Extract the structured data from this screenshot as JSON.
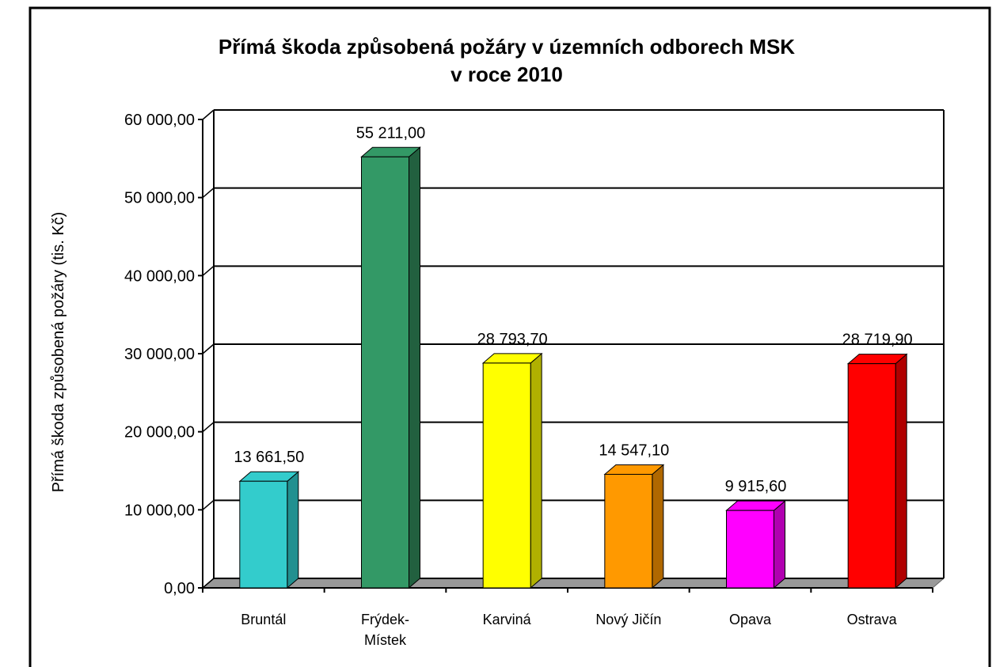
{
  "chart_data": {
    "type": "bar3d",
    "title": "Přímá škoda způsobená požáry v územních odborech MSK",
    "subtitle": "v roce 2010",
    "y_label": "Přímá škoda způsobená požáry (tis. Kč)",
    "categories": [
      "Bruntál",
      "Frýdek-Místek",
      "Karviná",
      "Nový Jičín",
      "Opava",
      "Ostrava"
    ],
    "values": [
      13661.5,
      55211,
      28793.7,
      14547.1,
      9915.6,
      28719.9
    ],
    "value_labels": [
      "13 661,50",
      "55 211,00",
      "28 793,70",
      "14 547,10",
      "9 915,60",
      "28 719,90"
    ],
    "colors": [
      "#33cccc",
      "#339966",
      "#ffff00",
      "#ff9900",
      "#ff00ff",
      "#ff0000"
    ],
    "side_colors": [
      "#229090",
      "#22603f",
      "#b0b000",
      "#b06800",
      "#b000b0",
      "#b00000"
    ],
    "ylim": [
      0,
      60000
    ],
    "yticks": [
      {
        "value": 0,
        "label": "0,00"
      },
      {
        "value": 10000,
        "label": "10 000,00"
      },
      {
        "value": 20000,
        "label": "20 000,00"
      },
      {
        "value": 30000,
        "label": "30 000,00"
      },
      {
        "value": 40000,
        "label": "40 000,00"
      },
      {
        "value": 50000,
        "label": "50 000,00"
      },
      {
        "value": 60000,
        "label": "60 000,00"
      }
    ],
    "grid": true
  }
}
